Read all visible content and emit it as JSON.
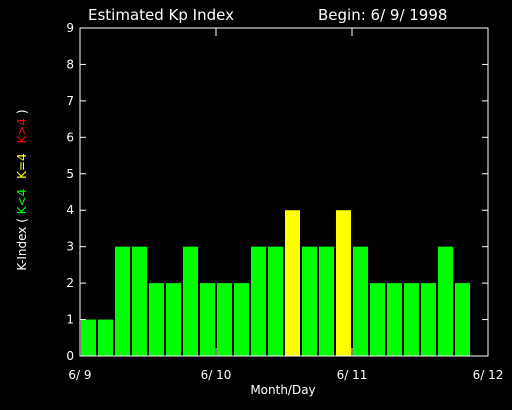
{
  "chart_data": {
    "type": "bar",
    "title": "Estimated Kp Index",
    "begin_label": "Begin: 6/ 9/ 1998",
    "xlabel": "Month/Day",
    "ylabel": {
      "prefix": "K-Index (",
      "green_part": "K<4",
      "yellow_part": "K=4",
      "red_part": "K>4",
      "suffix": ")"
    },
    "ylim": [
      0,
      9
    ],
    "yticks": [
      "0",
      "1",
      "2",
      "3",
      "4",
      "5",
      "6",
      "7",
      "8",
      "9"
    ],
    "xlim_days": [
      0,
      3
    ],
    "xticks": [
      {
        "label": "6/ 9",
        "day": 0
      },
      {
        "label": "6/ 10",
        "day": 1
      },
      {
        "label": "6/ 11",
        "day": 2
      },
      {
        "label": "6/ 12",
        "day": 3
      }
    ],
    "interval_hours": 3,
    "values": [
      1,
      1,
      3,
      3,
      2,
      2,
      3,
      2,
      2,
      2,
      3,
      3,
      4,
      3,
      3,
      4,
      3,
      2,
      2,
      2,
      2,
      3,
      2
    ],
    "colors": {
      "below_4": "#00ff00",
      "equal_4": "#ffff00",
      "above_4": "#ff0000",
      "axis": "#ffffff",
      "background": "#000000"
    },
    "grid": false,
    "legend": "none"
  }
}
